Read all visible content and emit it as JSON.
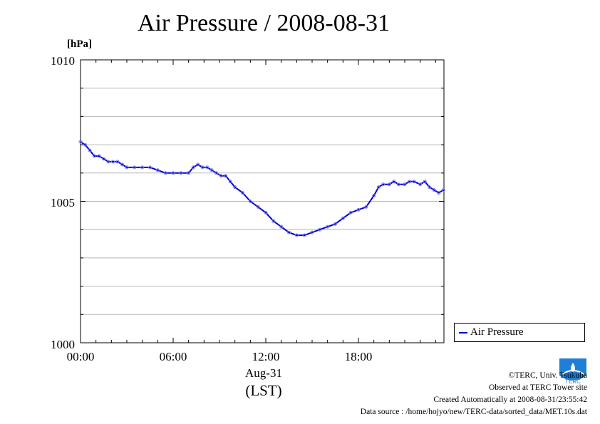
{
  "chart_data": {
    "type": "line",
    "title": "Air Pressure / 2008-08-31",
    "ylabel": "[hPa]",
    "xlabel": "Aug-31",
    "x_unit_label": "(LST)",
    "ylim": [
      1000,
      1010
    ],
    "xlim_hours": [
      0,
      23.5
    ],
    "y_ticks": [
      "1000",
      "1005",
      "1010"
    ],
    "x_ticks": [
      "00:00",
      "06:00",
      "12:00",
      "18:00"
    ],
    "grid": true,
    "legend_position": "outside-right-bottom",
    "series": [
      {
        "name": "Air Pressure",
        "color": "#0000cc",
        "x_hours": [
          0,
          0.3,
          0.6,
          0.9,
          1.2,
          1.5,
          1.8,
          2.1,
          2.4,
          2.7,
          3.0,
          3.5,
          4.0,
          4.5,
          5.0,
          5.5,
          6.0,
          6.5,
          7.0,
          7.3,
          7.6,
          7.9,
          8.2,
          8.5,
          8.8,
          9.1,
          9.4,
          9.7,
          10.0,
          10.5,
          11.0,
          11.5,
          12.0,
          12.5,
          13.0,
          13.5,
          14.0,
          14.5,
          15.0,
          15.5,
          16.0,
          16.5,
          17.0,
          17.5,
          18.0,
          18.5,
          19.0,
          19.3,
          19.6,
          20.0,
          20.3,
          20.6,
          21.0,
          21.3,
          21.6,
          22.0,
          22.3,
          22.6,
          22.9,
          23.2,
          23.5
        ],
        "y": [
          1007.1,
          1007.0,
          1006.8,
          1006.6,
          1006.6,
          1006.5,
          1006.4,
          1006.4,
          1006.4,
          1006.3,
          1006.2,
          1006.2,
          1006.2,
          1006.2,
          1006.1,
          1006.0,
          1006.0,
          1006.0,
          1006.0,
          1006.2,
          1006.3,
          1006.2,
          1006.2,
          1006.1,
          1006.0,
          1005.9,
          1005.9,
          1005.7,
          1005.5,
          1005.3,
          1005.0,
          1004.8,
          1004.6,
          1004.3,
          1004.1,
          1003.9,
          1003.8,
          1003.8,
          1003.9,
          1004.0,
          1004.1,
          1004.2,
          1004.4,
          1004.6,
          1004.7,
          1004.8,
          1005.2,
          1005.5,
          1005.6,
          1005.6,
          1005.7,
          1005.6,
          1005.6,
          1005.7,
          1005.7,
          1005.6,
          1005.7,
          1005.5,
          1005.4,
          1005.3,
          1005.4
        ]
      }
    ]
  },
  "legend": {
    "label": "Air Pressure"
  },
  "footer": {
    "copyright": "©TERC, Univ. Tsukuba",
    "observed": "Observed at TERC Tower site",
    "created": "Created Automatically at 2008-08-31/23:55:42",
    "source": "Data source : /home/hojyo/new/TERC-data/sorted_data/MET.10s.dat"
  },
  "logo": {
    "text": "TERC",
    "color": "#1f7fd6"
  }
}
